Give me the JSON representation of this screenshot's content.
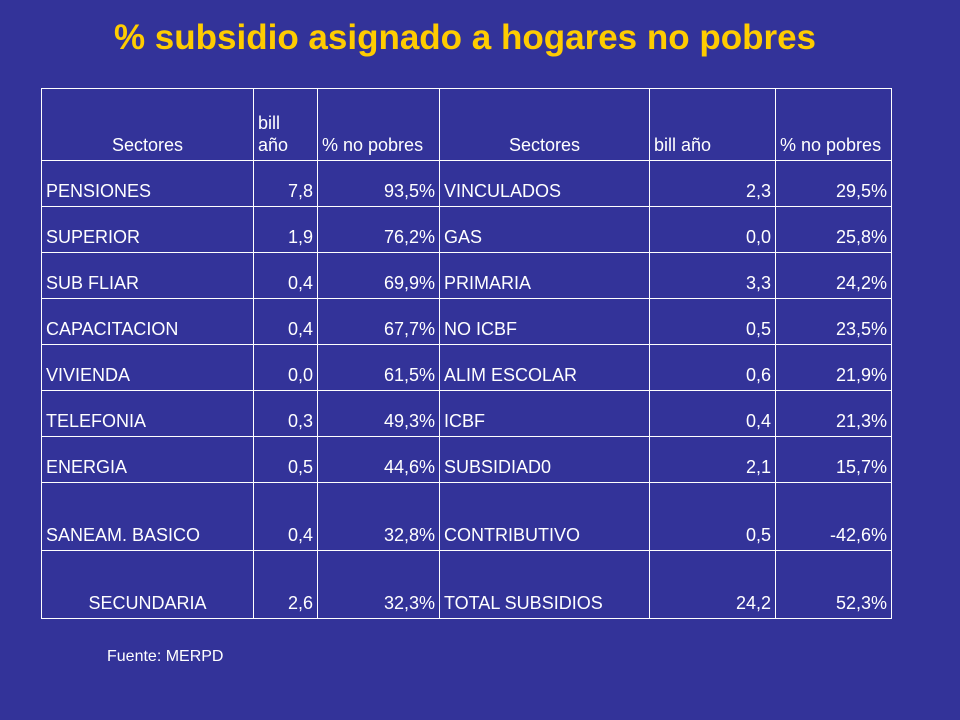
{
  "title": "% subsidio asignado a hogares no pobres",
  "table": {
    "headers": [
      "Sectores",
      "bill año",
      "% no pobres",
      "Sectores",
      "bill año",
      "% no pobres"
    ],
    "rows": [
      [
        "PENSIONES",
        "7,8",
        "93,5%",
        "VINCULADOS",
        "2,3",
        "29,5%"
      ],
      [
        "SUPERIOR",
        "1,9",
        "76,2%",
        "GAS",
        "0,0",
        "25,8%"
      ],
      [
        "SUB FLIAR",
        "0,4",
        "69,9%",
        "PRIMARIA",
        "3,3",
        "24,2%"
      ],
      [
        "CAPACITACION",
        "0,4",
        "67,7%",
        "NO ICBF",
        "0,5",
        "23,5%"
      ],
      [
        "VIVIENDA",
        "0,0",
        "61,5%",
        "ALIM ESCOLAR",
        "0,6",
        "21,9%"
      ],
      [
        "TELEFONIA",
        "0,3",
        "49,3%",
        "ICBF",
        "0,4",
        "21,3%"
      ],
      [
        "ENERGIA",
        "0,5",
        "44,6%",
        "SUBSIDIAD0",
        "2,1",
        "15,7%"
      ],
      [
        "SANEAM. BASICO",
        "0,4",
        "32,8%",
        "CONTRIBUTIVO",
        "0,5",
        "-42,6%"
      ],
      [
        "SECUNDARIA",
        "2,6",
        "32,3%",
        "TOTAL SUBSIDIOS",
        "24,2",
        "52,3%"
      ]
    ]
  },
  "source": "Fuente: MERPD",
  "colors": {
    "background": "#333399",
    "title": "#FFCC00",
    "text": "#FFFFFF"
  }
}
